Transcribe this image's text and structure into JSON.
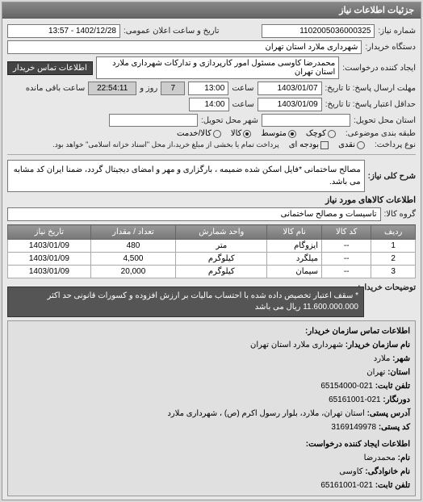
{
  "header": {
    "title": "جزئیات اطلاعات نیاز"
  },
  "form": {
    "request_no_label": "شماره نیاز:",
    "request_no": "1102005036000325",
    "announce_label": "تاریخ و ساعت اعلان عمومی:",
    "announce_value": "1402/12/28 - 13:57",
    "buyer_org_label": "دستگاه خریدار:",
    "buyer_org": "شهرداری ملارد استان تهران",
    "requester_label": "ایجاد کننده درخواست:",
    "requester": "محمدرضا کاوسی مسئول امور کارپردازی و تدارکات  شهرداری ملارد استان تهران",
    "contact_btn": "اطلاعات تماس خریدار",
    "deadline_recv_label": "مهلت ارسال پاسخ: تا تاریخ:",
    "deadline_recv_date": "1403/01/07",
    "time_label": "ساعت",
    "deadline_recv_time": "13:00",
    "remain_days": "7",
    "day_word": "روز و",
    "remain_time": "22:54:11",
    "remain_txt": "ساعت باقی مانده",
    "validity_label": "حداقل اعتبار پاسخ: تا تاریخ:",
    "validity_date": "1403/01/09",
    "validity_time": "14:00",
    "delivery_state_label": "استان محل تحویل:",
    "delivery_city_label": "شهر محل تحویل:",
    "budget_type_label": "طبقه بندی موضوعی:",
    "budget_opts": {
      "a": "کوچک",
      "b": "متوسط",
      "c": "کالا",
      "d": "کالا/خدمت"
    },
    "pay_type_label": "نوع پرداخت:",
    "pay_opts": {
      "a": "نقدی",
      "b": "بودجه ای"
    },
    "pay_note": "پرداخت تمام یا بخشی از مبلغ خرید،از محل \"اسناد خزانه اسلامی\" خواهد بود.",
    "desc_label": "شرح کلی نیاز:",
    "desc_value": "مصالح ساختمانی *فایل اسکن شده ضمیمه ، بارگزاری و مهر و امضای دیجیتال گردد، ضمنا ایران کد مشابه می باشد.",
    "goods_title": "اطلاعات کالاهای مورد نیاز",
    "group_label": "گروه کالا:",
    "group_value": "تاسیسات و مصالح ساختمانی"
  },
  "table": {
    "headers": {
      "row": "ردیف",
      "code": "کد کالا",
      "name": "نام کالا",
      "unit": "واحد شمارش",
      "qty": "تعداد / مقدار",
      "date": "تاریخ نیاز"
    },
    "rows": [
      {
        "n": "1",
        "code": "--",
        "name": "ایزوگام",
        "unit": "متر",
        "qty": "480",
        "date": "1403/01/09"
      },
      {
        "n": "2",
        "code": "--",
        "name": "میلگرد",
        "unit": "کیلوگرم",
        "qty": "4,500",
        "date": "1403/01/09"
      },
      {
        "n": "3",
        "code": "--",
        "name": "سیمان",
        "unit": "کیلوگرم",
        "qty": "20,000",
        "date": "1403/01/09"
      }
    ]
  },
  "note": {
    "label": "توضیحات خریدار:",
    "text": "* سقف اعتبار تخصیص داده شده با احتساب مالیات بر ارزش افزوده و کسورات قانونی حد اکثر 11.600.000.000 ریال می باشد"
  },
  "contact": {
    "title": "اطلاعات تماس سازمان خریدار:",
    "org_label": "نام سازمان خریدار:",
    "org": "شهرداری ملارد استان تهران",
    "city_label": "شهر:",
    "city": "ملارد",
    "state_label": "استان:",
    "state": "تهران",
    "tel_label": "تلفن ثابت:",
    "tel": "021-65154000",
    "fax_label": "دورنگار:",
    "fax": "021-65161001",
    "addr_label": "آدرس پستی:",
    "addr": "استان تهران، ملارد، بلوار رسول اکرم (ص) ، شهرداری ملارد",
    "zip_label": "کد پستی:",
    "zip": "3169149978",
    "creator_title": "اطلاعات ایجاد کننده درخواست:",
    "name_label": "نام:",
    "name": "محمدرضا",
    "family_label": "نام خانوادگی:",
    "family": "کاوسی",
    "tel2_label": "تلفن ثابت:",
    "tel2": "021-65161001"
  }
}
